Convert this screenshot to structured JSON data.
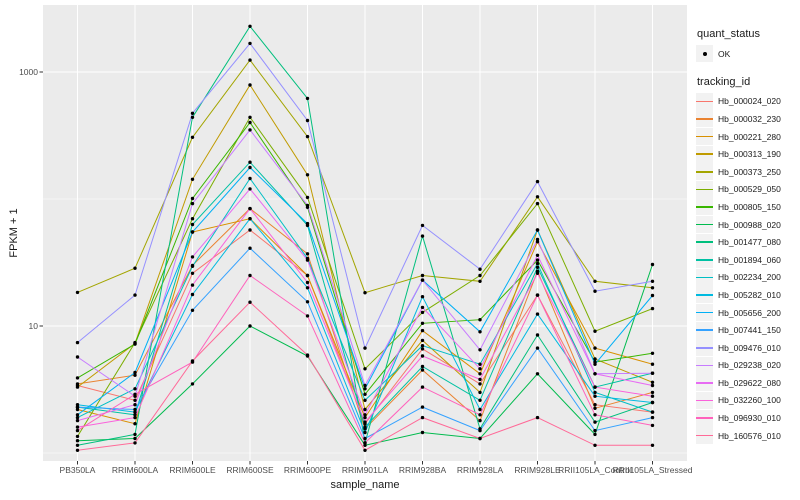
{
  "figure": {
    "panel_bg": "#EBEBEB",
    "grid_color": "#FFFFFF",
    "tick_color": "#333333",
    "axis_text_color": "#4D4D4D",
    "point_color": "#000000",
    "legend_key_bg": "#F2F2F2"
  },
  "legend": {
    "quant_status": {
      "title": "quant_status",
      "items": [
        {
          "label": "OK",
          "marker": "black-point"
        }
      ]
    },
    "tracking_id": {
      "title": "tracking_id"
    }
  },
  "chart_data": {
    "type": "line",
    "title": "",
    "xlabel": "sample_name",
    "ylabel": "FPKM + 1",
    "log_scale_y": true,
    "ylim": [
      1,
      3300
    ],
    "y_breaks": [
      {
        "label": "10",
        "value": 10
      },
      {
        "label": "1000",
        "value": 1000
      }
    ],
    "y_minor_breaks": [
      1,
      100
    ],
    "grid": true,
    "legend_position": "right",
    "point_marker": "black dot on every data point (quant_status OK)",
    "categories": [
      "PB350LA",
      "RRIM600LA",
      "RRIM600LE",
      "RRIM600SE",
      "RRIM600PE",
      "RRIM901LA",
      "RRIM928BA",
      "RRIM928LA",
      "RRIM928LE",
      "RRII105LA_Control",
      "RRII105LA_Stressed"
    ],
    "series": [
      {
        "name": "Hb_000024_020",
        "color": "#F8766D",
        "values": [
          3.4,
          2.6,
          26,
          57,
          25,
          1.7,
          6.6,
          3.5,
          17.5,
          2.4,
          2.1
        ]
      },
      {
        "name": "Hb_000032_230",
        "color": "#EA8331",
        "values": [
          3.5,
          4.1,
          30,
          84,
          37,
          1.55,
          4.5,
          1.8,
          27,
          2.25,
          3.0
        ]
      },
      {
        "name": "Hb_000221_280",
        "color": "#D89000",
        "values": [
          2.2,
          1.7,
          55,
          70,
          25,
          1.9,
          9.2,
          4.2,
          46,
          6.7,
          5.0
        ]
      },
      {
        "name": "Hb_000313_190",
        "color": "#C09B00",
        "values": [
          3.3,
          7.3,
          143,
          790,
          155,
          2.2,
          7.7,
          3.0,
          57,
          5.5,
          3.6
        ]
      },
      {
        "name": "Hb_000373_250",
        "color": "#A3A500",
        "values": [
          18.4,
          28.5,
          306,
          1240,
          310,
          18.3,
          25,
          22.5,
          104,
          22.5,
          20
        ]
      },
      {
        "name": "Hb_000529_050",
        "color": "#7CAE00",
        "values": [
          1.35,
          7.4,
          70,
          440,
          103,
          4.6,
          12.8,
          25,
          92,
          9.1,
          13.7
        ]
      },
      {
        "name": "Hb_000805_150",
        "color": "#39B600",
        "values": [
          3.9,
          7.2,
          101,
          400,
          86,
          2.9,
          10.5,
          11.2,
          33,
          5.2,
          6.1
        ]
      },
      {
        "name": "Hb_000988_020",
        "color": "#00BB4E",
        "values": [
          1.25,
          1.3,
          3.5,
          10,
          5.8,
          1.15,
          1.45,
          1.3,
          4.2,
          1.4,
          30.5
        ]
      },
      {
        "name": "Hb_001477_080",
        "color": "#00BF7D",
        "values": [
          1.15,
          1.4,
          440,
          2290,
          620,
          1.2,
          51,
          1.55,
          8.5,
          1.75,
          2.5
        ]
      },
      {
        "name": "Hb_001894_060",
        "color": "#00C1A3",
        "values": [
          2.3,
          2.0,
          63,
          195,
          62,
          1.6,
          4.8,
          2.6,
          29,
          3.3,
          4.25
        ]
      },
      {
        "name": "Hb_002234_200",
        "color": "#00BFC4",
        "values": [
          1.9,
          3.2,
          29.5,
          145,
          34,
          2.6,
          7.0,
          5.0,
          31,
          3.0,
          2.1
        ]
      },
      {
        "name": "Hb_005282_010",
        "color": "#00BAE0",
        "values": [
          2.4,
          2.1,
          17.7,
          70,
          20,
          1.45,
          17,
          2.2,
          12.4,
          2.8,
          2.5
        ]
      },
      {
        "name": "Hb_005656_200",
        "color": "#00B0F6",
        "values": [
          2.0,
          4.3,
          55,
          177,
          64,
          3.2,
          23,
          9.0,
          57,
          5.0,
          17.4
        ]
      },
      {
        "name": "Hb_007441_150",
        "color": "#35A2FF",
        "values": [
          2.3,
          2.2,
          13.3,
          41,
          15.5,
          1.3,
          2.3,
          1.5,
          6.7,
          1.5,
          1.9
        ]
      },
      {
        "name": "Hb_009476_010",
        "color": "#9590FF",
        "values": [
          7.4,
          17.5,
          473,
          1680,
          415,
          6.7,
          62,
          28,
          137,
          18.8,
          22.5
        ]
      },
      {
        "name": "Hb_029238_020",
        "color": "#C77CFF",
        "values": [
          5.7,
          2.8,
          92,
          350,
          89,
          3.4,
          23,
          6.5,
          48,
          4.2,
          4.25
        ]
      },
      {
        "name": "Hb_029622_080",
        "color": "#E76BF3",
        "values": [
          1.8,
          2.4,
          35,
          120,
          33,
          2.0,
          14,
          4.6,
          36,
          4.2,
          3.4
        ]
      },
      {
        "name": "Hb_032260_100",
        "color": "#FA62DB",
        "values": [
          1.6,
          1.9,
          21,
          84,
          22,
          1.75,
          5.8,
          3.8,
          26,
          3.3,
          2.8
        ]
      },
      {
        "name": "Hb_096930_010",
        "color": "#FF62BC",
        "values": [
          1.5,
          2.9,
          5.2,
          25,
          12,
          1.2,
          3.3,
          2.0,
          17.5,
          2.0,
          1.65
        ]
      },
      {
        "name": "Hb_160576_010",
        "color": "#FF6A98",
        "values": [
          1.05,
          1.2,
          5.3,
          15.4,
          5.9,
          1.05,
          1.9,
          1.3,
          1.9,
          1.15,
          1.15
        ]
      }
    ]
  }
}
